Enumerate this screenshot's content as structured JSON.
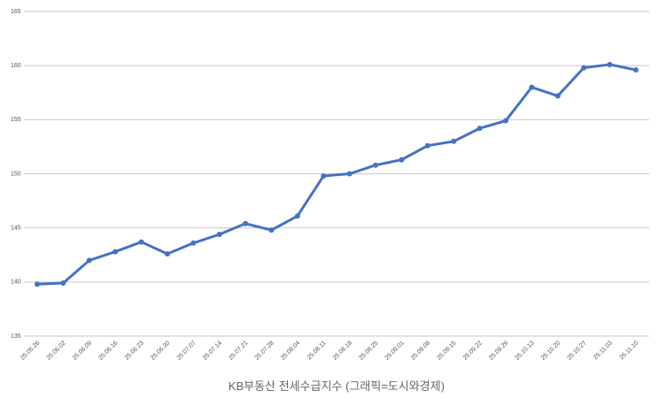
{
  "chart_data": {
    "type": "line",
    "title": "KB부동산 전세수급지수 (그래픽=도시와경제)",
    "categories": [
      "25.05.26",
      "25.06.02",
      "25.06.09",
      "25.06.16",
      "25.06.23",
      "25.06.30",
      "25.07.07",
      "25.07.14",
      "25.07.21",
      "25.07.28",
      "25.08.04",
      "25.08.11",
      "25.08.18",
      "25.08.25",
      "25.09.01",
      "25.09.08",
      "25.09.15",
      "25.09.22",
      "25.09.29",
      "25.10.13",
      "25.10.20",
      "25.10.27",
      "25.11.03",
      "25.11.10"
    ],
    "values": [
      139.8,
      139.9,
      142.0,
      142.8,
      143.7,
      142.6,
      143.6,
      144.4,
      145.4,
      144.8,
      146.1,
      149.8,
      150.0,
      150.8,
      151.3,
      152.6,
      153.0,
      154.2,
      154.9,
      158.0,
      157.2,
      159.8,
      160.1,
      159.6
    ],
    "color": "#4472c4",
    "ylim": [
      135,
      165
    ],
    "yticks": [
      135,
      140,
      145,
      150,
      155,
      160,
      165
    ],
    "grid": true
  }
}
